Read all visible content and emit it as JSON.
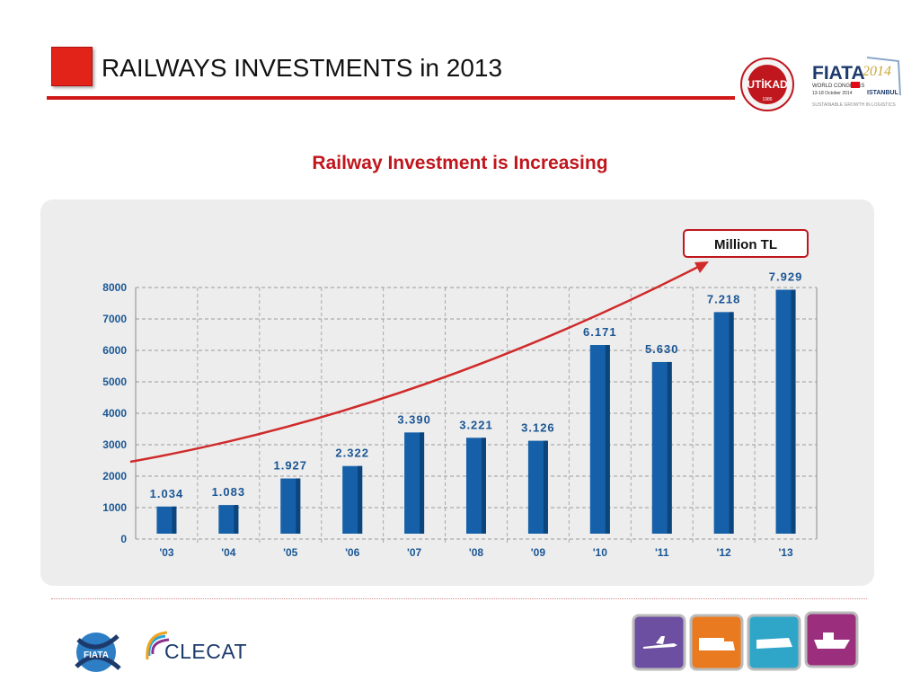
{
  "header": {
    "title": "RAILWAYS INVESTMENTS in 2013",
    "logo_badge_text": "UTİKAD",
    "logo_badge_year": "1986",
    "logo_brand": "FIATA",
    "logo_year": "2014",
    "logo_line1": "WORLD CONGRESS",
    "logo_line2": "13-18 October 2014",
    "logo_city": "ISTANBUL",
    "logo_tagline": "SUSTAINABLE GROWTH IN LOGISTICS"
  },
  "subtitle": "Railway Investment is Increasing",
  "footer": {
    "clecat_text": "CLECAT",
    "fiata_text": "FIATA"
  },
  "colors": {
    "accent": "#d01818",
    "bar": "#1560a8",
    "bar_dark": "#0c447c",
    "label": "#1a5694",
    "tiles": [
      "#6c4fa0",
      "#ea7a1f",
      "#2fa6c8",
      "#9b2f7e"
    ]
  },
  "chart_data": {
    "type": "bar",
    "categories": [
      "'03",
      "'04",
      "'05",
      "'06",
      "'07",
      "'08",
      "'09",
      "'10",
      "'11",
      "'12",
      "'13"
    ],
    "values": [
      1034,
      1083,
      1927,
      2322,
      3390,
      3221,
      3126,
      6171,
      5630,
      7218,
      7929
    ],
    "data_labels": [
      "1.034",
      "1.083",
      "1.927",
      "2.322",
      "3.390",
      "3.221",
      "3.126",
      "6.171",
      "5.630",
      "7.218",
      "7.929"
    ],
    "y_ticks": [
      "0",
      "1000",
      "2000",
      "3000",
      "4000",
      "5000",
      "6000",
      "7000",
      "8000"
    ],
    "ylim": [
      0,
      8000
    ],
    "grid": true,
    "annotation": "Million TL",
    "title": "",
    "xlabel": "",
    "ylabel": ""
  }
}
